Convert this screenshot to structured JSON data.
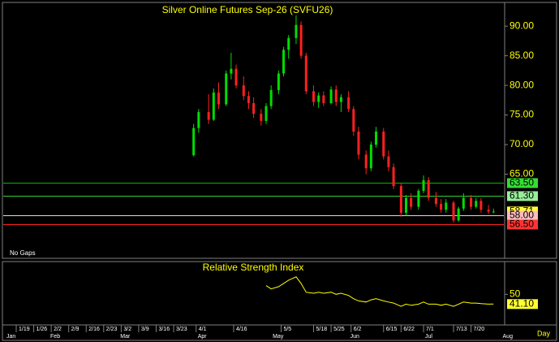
{
  "chart_data": {
    "type": "candlestick",
    "title": "Silver Online Futures Sep-26 (SVFU26)",
    "note": "No Gaps",
    "period": "Day",
    "up_color": "#00dd00",
    "down_color": "#ff2020",
    "ylim": [
      50.8,
      94
    ],
    "yticks": [
      {
        "value": 65,
        "label": "65.00"
      },
      {
        "value": 70,
        "label": "70.00"
      },
      {
        "value": 75,
        "label": "75.00"
      },
      {
        "value": 80,
        "label": "80.00"
      },
      {
        "value": 85,
        "label": "85.00"
      },
      {
        "value": 90,
        "label": "90.00"
      }
    ],
    "levels": [
      {
        "value": 63.5,
        "label": "63.50",
        "color": "#00c000",
        "label_color": "#33dd33"
      },
      {
        "value": 61.3,
        "label": "61.30",
        "color": "#33cc33",
        "label_color": "#99ee99"
      },
      {
        "value": 58.71,
        "label": "58.71",
        "color": null,
        "label_color": "#ffff33"
      },
      {
        "value": 58,
        "label": "58.00",
        "color": "#ffcccc",
        "label_color": "#ffbbbb"
      },
      {
        "value": 56.5,
        "label": "56.50",
        "color": "#ff2020",
        "label_color": "#ff3333"
      }
    ],
    "xticks": [
      "1/19",
      "1/26",
      "2/2",
      "2/9",
      "2/16",
      "2/23",
      "3/2",
      "3/9",
      "3/16",
      "3/23",
      "4/1",
      "4/16",
      "5/5",
      "5/18",
      "5/25",
      "6/2",
      "6/15",
      "6/22",
      "7/1",
      "7/13",
      "7/20"
    ],
    "months": [
      "Jan",
      "Feb",
      "Mar",
      "Apr",
      "May",
      "Jun",
      "Jul",
      "Aug"
    ],
    "candles": [
      [
        "3/31",
        68.2,
        73.5,
        68,
        72.8
      ],
      [
        "4/2",
        72.8,
        76,
        72,
        75.5
      ],
      [
        "4/6",
        75.5,
        78.5,
        73.5,
        74.2
      ],
      [
        "4/8",
        74.2,
        79.5,
        74,
        78.8
      ],
      [
        "4/10",
        78.8,
        80.5,
        76,
        76.8
      ],
      [
        "4/13",
        76.8,
        82.5,
        76.5,
        82
      ],
      [
        "4/15",
        82,
        85.5,
        81,
        82.8
      ],
      [
        "4/17",
        82.8,
        83.5,
        79.5,
        80
      ],
      [
        "4/20",
        80,
        81.5,
        77.5,
        78.2
      ],
      [
        "4/22",
        78.2,
        79,
        76,
        77
      ],
      [
        "4/24",
        77,
        78,
        74.5,
        75.2
      ],
      [
        "4/27",
        75.2,
        76,
        73.2,
        74
      ],
      [
        "4/29",
        74,
        77,
        73.5,
        76.5
      ],
      [
        "5/1",
        76.5,
        80,
        76,
        79.2
      ],
      [
        "5/4",
        79.2,
        82.5,
        78.5,
        82
      ],
      [
        "5/6",
        82,
        86.5,
        81.5,
        86
      ],
      [
        "5/8",
        86,
        88.5,
        84.5,
        88
      ],
      [
        "5/11",
        88,
        91.8,
        87,
        90.2
      ],
      [
        "5/13",
        90.2,
        90.8,
        84.5,
        85
      ],
      [
        "5/15",
        85,
        85.5,
        78.5,
        79
      ],
      [
        "5/18",
        79,
        80,
        76.5,
        77.2
      ],
      [
        "5/20",
        77.2,
        78.8,
        76.2,
        78.3
      ],
      [
        "5/22",
        78.3,
        79,
        76.5,
        77
      ],
      [
        "5/25",
        77,
        79.8,
        76.8,
        79.3
      ],
      [
        "5/27",
        79.3,
        80,
        76.5,
        77.2
      ],
      [
        "5/29",
        77.2,
        78.5,
        75.5,
        78
      ],
      [
        "6/1",
        78,
        79,
        75.5,
        76
      ],
      [
        "6/3",
        76,
        76.5,
        71.5,
        72.2
      ],
      [
        "6/5",
        72.2,
        73,
        67.5,
        68.3
      ],
      [
        "6/8",
        68.3,
        69,
        65,
        66
      ],
      [
        "6/10",
        66,
        70.5,
        65.5,
        70
      ],
      [
        "6/12",
        70,
        73,
        69.5,
        72.2
      ],
      [
        "6/15",
        72.2,
        72.8,
        67.5,
        68
      ],
      [
        "6/17",
        68,
        69,
        65.5,
        66.2
      ],
      [
        "6/19",
        66.2,
        66.8,
        62.5,
        63
      ],
      [
        "6/22",
        63,
        63.5,
        57.8,
        58.5
      ],
      [
        "6/24",
        58.5,
        61.5,
        58,
        61
      ],
      [
        "6/26",
        61,
        61.8,
        59,
        59.5
      ],
      [
        "6/29",
        59.5,
        62.5,
        59,
        62.2
      ],
      [
        "7/1",
        62.2,
        64.8,
        61.8,
        64
      ],
      [
        "7/3",
        64,
        64.5,
        60.5,
        61
      ],
      [
        "7/6",
        61,
        62,
        59.5,
        60
      ],
      [
        "7/8",
        60,
        60.8,
        58.5,
        59
      ],
      [
        "7/10",
        59,
        60.8,
        58.5,
        60.2
      ],
      [
        "7/13",
        60.2,
        60.5,
        56.8,
        57.2
      ],
      [
        "7/15",
        57.2,
        59.5,
        57,
        59.2
      ],
      [
        "7/17",
        59.2,
        61.8,
        58.8,
        61
      ],
      [
        "7/20",
        61,
        61.5,
        59,
        59.5
      ],
      [
        "7/22",
        59.5,
        61,
        59.2,
        60.5
      ],
      [
        "7/24",
        60.5,
        61,
        58.5,
        59
      ],
      [
        "7/27",
        59,
        59.8,
        58.3,
        58.7
      ],
      [
        "7/29",
        58.7,
        59.2,
        58.4,
        58.71
      ]
    ],
    "rsi": {
      "title": "Relative Strength Index",
      "color": "#ffff00",
      "ylim": [
        22,
        80
      ],
      "yticks": [
        50
      ],
      "last_label": "41.10",
      "dates": [
        "4/29",
        "5/1",
        "5/4",
        "5/6",
        "5/8",
        "5/11",
        "5/13",
        "5/15",
        "5/18",
        "5/20",
        "5/22",
        "5/25",
        "5/27",
        "5/29",
        "6/1",
        "6/3",
        "6/5",
        "6/8",
        "6/10",
        "6/12",
        "6/15",
        "6/17",
        "6/19",
        "6/22",
        "6/24",
        "6/26",
        "6/29",
        "7/1",
        "7/3",
        "7/6",
        "7/8",
        "7/10",
        "7/13",
        "7/15",
        "7/17",
        "7/20",
        "7/22",
        "7/24",
        "7/27",
        "7/29"
      ],
      "values": [
        58,
        55,
        57,
        60,
        63,
        66,
        60,
        52,
        51,
        52,
        51,
        52,
        50,
        51,
        49,
        46,
        44,
        43,
        45,
        46,
        44,
        43,
        42,
        39,
        41,
        40,
        41,
        43,
        41,
        41,
        40,
        41,
        39,
        41,
        43,
        42,
        42,
        41.5,
        41,
        41.1
      ]
    }
  }
}
